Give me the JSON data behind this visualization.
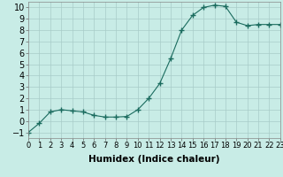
{
  "x": [
    0,
    1,
    2,
    3,
    4,
    5,
    6,
    7,
    8,
    9,
    10,
    11,
    12,
    13,
    14,
    15,
    16,
    17,
    18,
    19,
    20,
    21,
    22,
    23
  ],
  "y": [
    -1.0,
    -0.2,
    0.8,
    1.0,
    0.9,
    0.8,
    0.5,
    0.35,
    0.35,
    0.4,
    1.0,
    2.0,
    3.3,
    5.5,
    8.0,
    9.3,
    10.0,
    10.2,
    10.1,
    8.7,
    8.4,
    8.5,
    8.5,
    8.5
  ],
  "line_color": "#1a6b5e",
  "marker": "+",
  "marker_size": 4,
  "bg_color": "#c8ece6",
  "grid_color": "#a8ccc8",
  "xlabel": "Humidex (Indice chaleur)",
  "xlim": [
    0,
    23
  ],
  "ylim": [
    -1.5,
    10.5
  ],
  "yticks": [
    -1,
    0,
    1,
    2,
    3,
    4,
    5,
    6,
    7,
    8,
    9,
    10
  ],
  "xticks": [
    0,
    1,
    2,
    3,
    4,
    5,
    6,
    7,
    8,
    9,
    10,
    11,
    12,
    13,
    14,
    15,
    16,
    17,
    18,
    19,
    20,
    21,
    22,
    23
  ],
  "tick_labelsize": 6,
  "xlabel_fontsize": 7.5,
  "xlabel_fontweight": "bold"
}
